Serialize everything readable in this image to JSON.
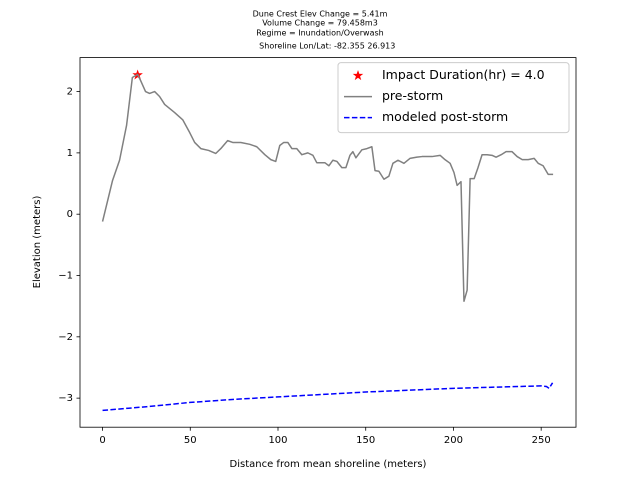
{
  "chart_data": {
    "type": "line",
    "title": [
      "Dune Crest Elev Change = 5.41m",
      "Volume Change = 79.458m3",
      "Regime = Inundation/Overwash",
      " Shoreline Lon/Lat: -82.355 26.913"
    ],
    "xlabel": "Distance from mean shoreline (meters)",
    "ylabel": "Elevation (meters)",
    "xlim": [
      -12.85,
      269.85
    ],
    "ylim": [
      -3.474,
      2.554
    ],
    "xticks": [
      0,
      50,
      100,
      150,
      200,
      250
    ],
    "yticks": [
      {
        "value": -3,
        "label": "−3"
      },
      {
        "value": -2,
        "label": "−2"
      },
      {
        "value": -1,
        "label": "−1"
      },
      0,
      1,
      2
    ],
    "legend": "upper right",
    "series": [
      {
        "name": "Impact Duration(hr) = 4.0",
        "color": "#ff0000",
        "marker": "star",
        "x": [
          20
        ],
        "values": [
          2.27
        ]
      },
      {
        "name": "pre-storm",
        "color": "#808080",
        "linestyle": "solid",
        "x": [
          0,
          2.9,
          5.7,
          9.7,
          13.7,
          17,
          20,
          21.7,
          24.5,
          26.8,
          29.7,
          32.5,
          35.4,
          41,
          45.7,
          49.7,
          52.5,
          56,
          60.5,
          64.5,
          67.4,
          71.3,
          74.2,
          78.8,
          83.9,
          87.9,
          92.5,
          95.9,
          98.7,
          101,
          103.3,
          105.6,
          107.9,
          110.7,
          113.6,
          117,
          119.9,
          122.1,
          126.7,
          129,
          131.3,
          133.6,
          136.4,
          138.7,
          141,
          142.7,
          144.4,
          147.8,
          150.7,
          153.5,
          155.3,
          157.5,
          160.4,
          163.2,
          165.5,
          168.4,
          171.8,
          175.2,
          179.2,
          182.1,
          187.8,
          192.4,
          195.2,
          198.1,
          200.3,
          202.1,
          204.3,
          206,
          207.8,
          209.5,
          211.8,
          214,
          216.3,
          219.2,
          222,
          224.3,
          227.2,
          230,
          233.4,
          236.3,
          239.2,
          242.6,
          246,
          248.3,
          251.1,
          254,
          256.8
        ],
        "values": [
          -0.12,
          0.22,
          0.55,
          0.88,
          1.45,
          2.23,
          2.28,
          2.18,
          2.0,
          1.97,
          2.0,
          1.92,
          1.79,
          1.66,
          1.54,
          1.33,
          1.17,
          1.07,
          1.04,
          0.99,
          1.07,
          1.2,
          1.17,
          1.17,
          1.14,
          1.1,
          0.97,
          0.89,
          0.86,
          1.12,
          1.17,
          1.17,
          1.07,
          1.07,
          0.97,
          1.0,
          0.96,
          0.84,
          0.84,
          0.79,
          0.88,
          0.86,
          0.76,
          0.76,
          0.96,
          1.02,
          0.92,
          1.05,
          1.07,
          1.1,
          0.71,
          0.7,
          0.57,
          0.62,
          0.83,
          0.88,
          0.83,
          0.91,
          0.93,
          0.94,
          0.94,
          0.96,
          0.89,
          0.83,
          0.68,
          0.47,
          0.53,
          -1.42,
          -1.24,
          0.58,
          0.58,
          0.76,
          0.97,
          0.97,
          0.96,
          0.93,
          0.97,
          1.02,
          1.02,
          0.94,
          0.89,
          0.89,
          0.91,
          0.83,
          0.79,
          0.65,
          0.65
        ]
      },
      {
        "name": "modeled post-storm",
        "color": "#0000ff",
        "linestyle": "dashed",
        "x": [
          0,
          25,
          50,
          75,
          100,
          125,
          150,
          175,
          200,
          225,
          250,
          253,
          254.5,
          256.5
        ],
        "values": [
          -3.2,
          -3.14,
          -3.07,
          -3.02,
          -2.98,
          -2.94,
          -2.9,
          -2.87,
          -2.84,
          -2.82,
          -2.8,
          -2.81,
          -2.84,
          -2.75
        ]
      }
    ]
  }
}
